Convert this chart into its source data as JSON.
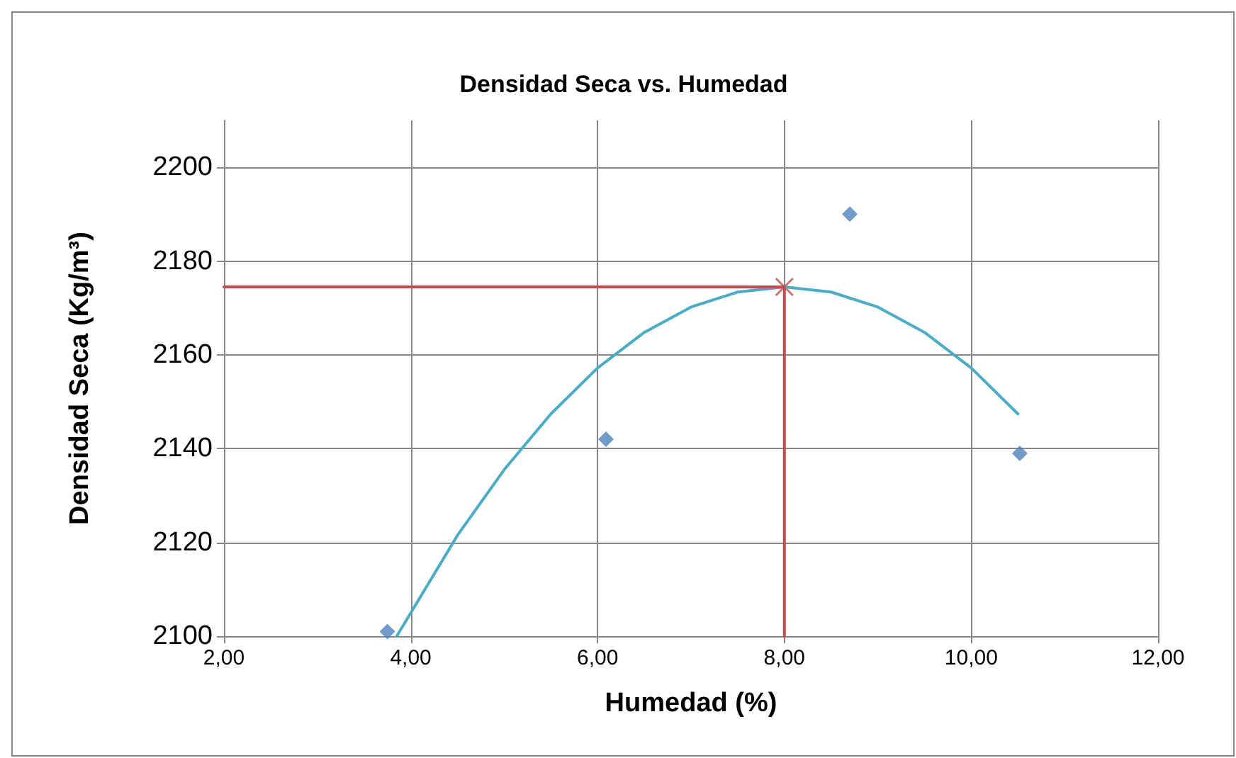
{
  "chart_data": {
    "type": "scatter",
    "title": "Densidad Seca vs. Humedad",
    "xlabel": "Humedad (%)",
    "ylabel": "Densidad Seca (Kg/m³)",
    "xlim": [
      2,
      12
    ],
    "xticks": [
      {
        "value": 2,
        "label": "2,00"
      },
      {
        "value": 4,
        "label": "4,00"
      },
      {
        "value": 6,
        "label": "6,00"
      },
      {
        "value": 8,
        "label": "8,00"
      },
      {
        "value": 10,
        "label": "10,00"
      },
      {
        "value": 12,
        "label": "12,00"
      }
    ],
    "ylim": [
      2100,
      2210
    ],
    "yticks": [
      2100,
      2120,
      2140,
      2160,
      2180,
      2200
    ],
    "grid": true,
    "series": [
      {
        "marker": "diamond",
        "color": "#4f81bd",
        "x": [
          3.75,
          6.09,
          8.7,
          10.52
        ],
        "values": [
          2101,
          2142,
          2190,
          2139
        ]
      },
      {
        "type": "line",
        "marker": "none",
        "line_style": "solid",
        "color": "#4bacc6",
        "x": [
          3.85,
          4.5,
          5,
          5.5,
          6,
          6.5,
          7,
          7.5,
          8,
          8.5,
          9,
          9.5,
          10,
          10.5
        ],
        "values": [
          2100,
          2121.5,
          2135.5,
          2147.4,
          2157.2,
          2164.8,
          2170.2,
          2173.4,
          2174.5,
          2173.4,
          2170.2,
          2164.8,
          2157.2,
          2147.4
        ]
      },
      {
        "type": "line",
        "marker": "none",
        "line_style": "solid",
        "color": "#c0504d",
        "x": [
          2,
          8,
          8
        ],
        "values": [
          2174.5,
          2174.5,
          2100
        ]
      },
      {
        "marker": "cross",
        "color": "#c0504d",
        "x": [
          8
        ],
        "values": [
          2174.5
        ]
      }
    ]
  }
}
